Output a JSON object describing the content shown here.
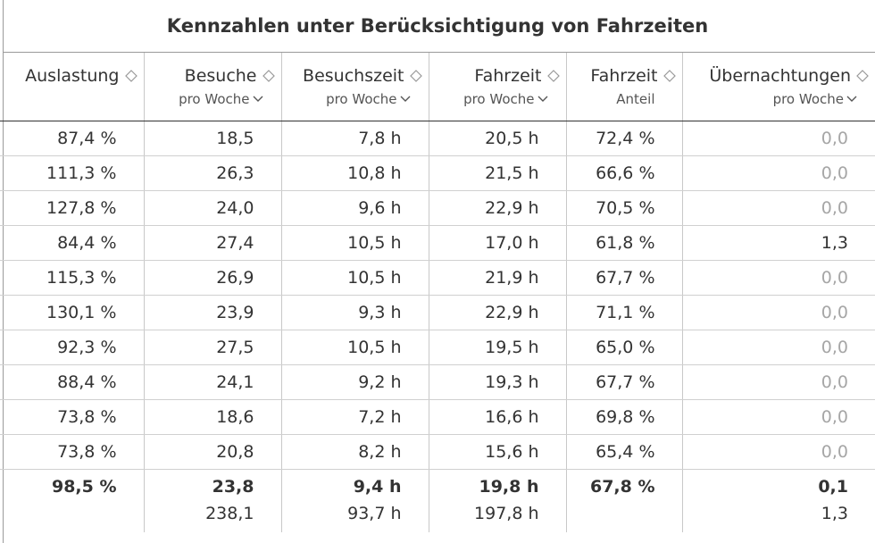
{
  "title": "Kennzahlen unter Berücksichtigung von Fahrzeiten",
  "columns": [
    {
      "label": "Auslastung",
      "sub": ""
    },
    {
      "label": "Besuche",
      "sub": "pro Woche"
    },
    {
      "label": "Besuchszeit",
      "sub": "pro Woche"
    },
    {
      "label": "Fahrzeit",
      "sub": "pro Woche"
    },
    {
      "label": "Fahrzeit",
      "sub": "Anteil"
    },
    {
      "label": "Übernachtungen",
      "sub": "pro Woche"
    }
  ],
  "rows": [
    [
      "87,4 %",
      "18,5",
      "7,8 h",
      "20,5 h",
      "72,4 %",
      "0,0"
    ],
    [
      "111,3 %",
      "26,3",
      "10,8 h",
      "21,5 h",
      "66,6 %",
      "0,0"
    ],
    [
      "127,8 %",
      "24,0",
      "9,6 h",
      "22,9 h",
      "70,5 %",
      "0,0"
    ],
    [
      "84,4 %",
      "27,4",
      "10,5 h",
      "17,0 h",
      "61,8 %",
      "1,3"
    ],
    [
      "115,3 %",
      "26,9",
      "10,5 h",
      "21,9 h",
      "67,7 %",
      "0,0"
    ],
    [
      "130,1 %",
      "23,9",
      "9,3 h",
      "22,9 h",
      "71,1 %",
      "0,0"
    ],
    [
      "92,3 %",
      "27,5",
      "10,5 h",
      "19,5 h",
      "65,0 %",
      "0,0"
    ],
    [
      "88,4 %",
      "24,1",
      "9,2 h",
      "19,3 h",
      "67,7 %",
      "0,0"
    ],
    [
      "73,8 %",
      "18,6",
      "7,2 h",
      "16,6 h",
      "69,8 %",
      "0,0"
    ],
    [
      "73,8 %",
      "20,8",
      "8,2 h",
      "15,6 h",
      "65,4 %",
      "0,0"
    ]
  ],
  "totals": [
    "98,5 %",
    "23,8",
    "9,4 h",
    "19,8 h",
    "67,8 %",
    "0,1"
  ],
  "sums": [
    "",
    "238,1",
    "93,7 h",
    "197,8 h",
    "",
    "1,3"
  ],
  "icons": {
    "sort": "sort-diamond-icon",
    "dropdown": "chevron-down-icon"
  },
  "colors": {
    "text": "#333333",
    "zero_value": "#a6a6a6",
    "grid": "#c8c8c8"
  }
}
